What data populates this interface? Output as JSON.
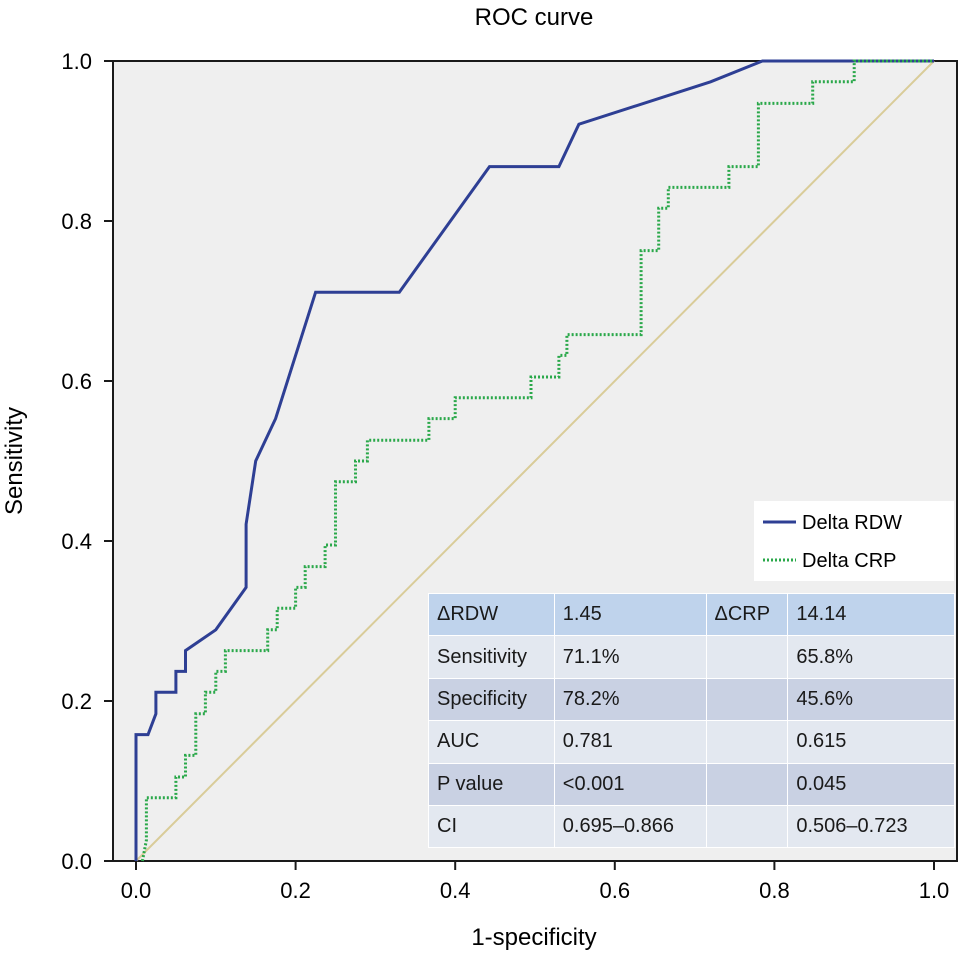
{
  "chart_data": {
    "type": "line",
    "title": "ROC curve",
    "xlabel": "1-specificity",
    "ylabel": "Sensitivity",
    "xlim": [
      0,
      1
    ],
    "ylim": [
      0,
      1
    ],
    "x_ticks": [
      "0.0",
      "0.2",
      "0.4",
      "0.6",
      "0.8",
      "1.0"
    ],
    "y_ticks": [
      "0.0",
      "0.2",
      "0.4",
      "0.6",
      "0.8",
      "1.0"
    ],
    "grid": false,
    "legend_position": "right",
    "series": [
      {
        "name": "Delta RDW",
        "color": "#2e3f94",
        "style": "solid",
        "points": [
          [
            0,
            0
          ],
          [
            0,
            0.158
          ],
          [
            0.015,
            0.158
          ],
          [
            0.025,
            0.184
          ],
          [
            0.025,
            0.211
          ],
          [
            0.05,
            0.211
          ],
          [
            0.05,
            0.237
          ],
          [
            0.062,
            0.237
          ],
          [
            0.062,
            0.263
          ],
          [
            0.1,
            0.289
          ],
          [
            0.138,
            0.342
          ],
          [
            0.138,
            0.421
          ],
          [
            0.15,
            0.5
          ],
          [
            0.175,
            0.553
          ],
          [
            0.225,
            0.711
          ],
          [
            0.33,
            0.711
          ],
          [
            0.443,
            0.868
          ],
          [
            0.53,
            0.868
          ],
          [
            0.555,
            0.921
          ],
          [
            0.72,
            0.974
          ],
          [
            0.785,
            1.0
          ],
          [
            1.0,
            1.0
          ]
        ]
      },
      {
        "name": "Delta CRP",
        "color": "#2aa84a",
        "style": "dotted",
        "points": [
          [
            0.008,
            0
          ],
          [
            0.013,
            0.026
          ],
          [
            0.013,
            0.079
          ],
          [
            0.05,
            0.079
          ],
          [
            0.05,
            0.105
          ],
          [
            0.062,
            0.105
          ],
          [
            0.062,
            0.132
          ],
          [
            0.075,
            0.132
          ],
          [
            0.075,
            0.184
          ],
          [
            0.087,
            0.184
          ],
          [
            0.087,
            0.211
          ],
          [
            0.1,
            0.211
          ],
          [
            0.1,
            0.237
          ],
          [
            0.112,
            0.237
          ],
          [
            0.112,
            0.263
          ],
          [
            0.165,
            0.263
          ],
          [
            0.165,
            0.289
          ],
          [
            0.177,
            0.289
          ],
          [
            0.177,
            0.316
          ],
          [
            0.2,
            0.316
          ],
          [
            0.2,
            0.342
          ],
          [
            0.212,
            0.342
          ],
          [
            0.212,
            0.368
          ],
          [
            0.237,
            0.368
          ],
          [
            0.237,
            0.395
          ],
          [
            0.25,
            0.395
          ],
          [
            0.25,
            0.474
          ],
          [
            0.275,
            0.474
          ],
          [
            0.275,
            0.5
          ],
          [
            0.29,
            0.5
          ],
          [
            0.29,
            0.526
          ],
          [
            0.367,
            0.526
          ],
          [
            0.367,
            0.553
          ],
          [
            0.4,
            0.553
          ],
          [
            0.4,
            0.579
          ],
          [
            0.495,
            0.579
          ],
          [
            0.495,
            0.605
          ],
          [
            0.53,
            0.605
          ],
          [
            0.53,
            0.632
          ],
          [
            0.54,
            0.632
          ],
          [
            0.54,
            0.658
          ],
          [
            0.633,
            0.658
          ],
          [
            0.633,
            0.763
          ],
          [
            0.655,
            0.763
          ],
          [
            0.655,
            0.816
          ],
          [
            0.667,
            0.816
          ],
          [
            0.667,
            0.842
          ],
          [
            0.743,
            0.842
          ],
          [
            0.743,
            0.868
          ],
          [
            0.78,
            0.868
          ],
          [
            0.78,
            0.947
          ],
          [
            0.848,
            0.947
          ],
          [
            0.848,
            0.974
          ],
          [
            0.9,
            0.974
          ],
          [
            0.9,
            1.0
          ],
          [
            1.0,
            1.0
          ]
        ]
      }
    ],
    "reference_line": {
      "points": [
        [
          0,
          0
        ],
        [
          1,
          1
        ]
      ],
      "color": "#d9cc99"
    }
  },
  "stats_table": {
    "rows": [
      [
        "ΔRDW",
        "1.45",
        "ΔCRP",
        "14.14"
      ],
      [
        "Sensitivity",
        "71.1%",
        "",
        "65.8%"
      ],
      [
        "Specificity",
        "78.2%",
        "",
        "45.6%"
      ],
      [
        "AUC",
        "0.781",
        "",
        "0.615"
      ],
      [
        "P value",
        "<0.001",
        "",
        "0.045"
      ],
      [
        "CI",
        "0.695–0.866",
        "",
        "0.506–0.723"
      ]
    ]
  },
  "colors": {
    "plot_background": "#efefef",
    "axis": "#1a1a1a"
  }
}
